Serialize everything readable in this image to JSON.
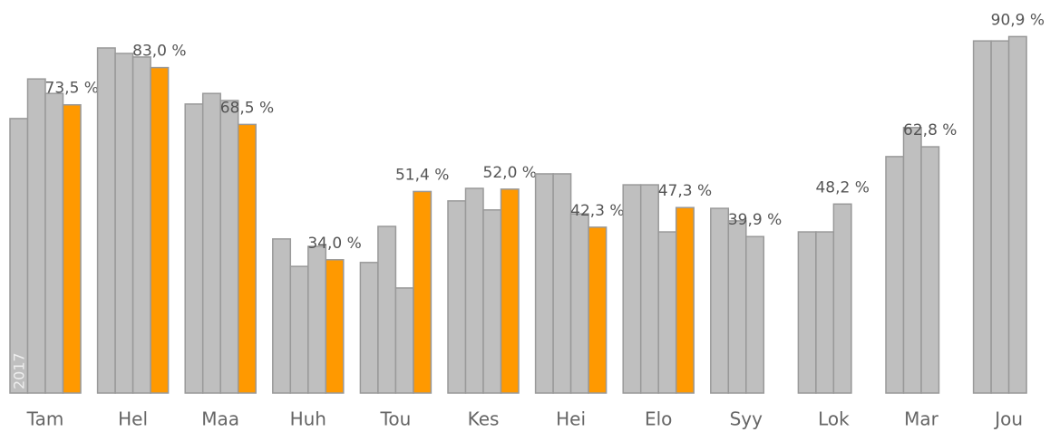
{
  "chart_data": {
    "type": "bar",
    "categories": [
      "Tam",
      "Hel",
      "Maa",
      "Huh",
      "Tou",
      "Kes",
      "Hei",
      "Elo",
      "Syy",
      "Lok",
      "Mar",
      "Jou"
    ],
    "series": [
      {
        "name": "2017",
        "color": "#bfbfbf",
        "values": [
          70.0,
          88.0,
          73.7,
          39.3,
          33.3,
          49.0,
          55.9,
          53.1,
          47.1,
          41.1,
          60.3,
          89.8
        ]
      },
      {
        "color": "#bfbfbf",
        "values": [
          80.1,
          86.6,
          76.4,
          32.3,
          42.5,
          52.2,
          55.9,
          53.1,
          43.9,
          41.1,
          67.7,
          89.8
        ]
      },
      {
        "color": "#bfbfbf",
        "values": [
          76.4,
          85.7,
          74.6,
          37.4,
          26.8,
          46.7,
          45.7,
          41.1,
          39.9,
          48.2,
          62.8,
          90.9
        ],
        "value_labels": [
          null,
          null,
          null,
          null,
          null,
          null,
          null,
          null,
          "39,9 %",
          "48,2 %",
          "62,8 %",
          "90,9 %"
        ]
      },
      {
        "color": "#ff9900",
        "values": [
          73.5,
          83.0,
          68.5,
          34.0,
          51.4,
          52.0,
          42.3,
          47.3,
          null,
          null,
          null,
          null
        ],
        "value_labels": [
          "73,5 %",
          "83,0 %",
          "68,5 %",
          "34,0 %",
          "51,4 %",
          "52,0 %",
          "42,3 %",
          "47,3 %",
          null,
          null,
          null,
          null
        ]
      }
    ]
  }
}
